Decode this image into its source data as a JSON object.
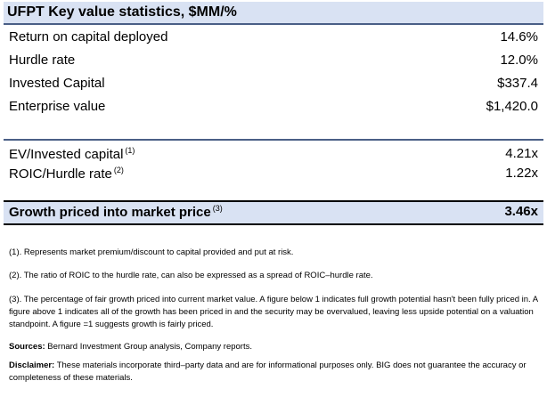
{
  "title": "UFPT Key value statistics, $MM/%",
  "metrics": [
    {
      "label": "Return on capital deployed",
      "value": "14.6%"
    },
    {
      "label": "Hurdle rate",
      "value": "12.0%"
    },
    {
      "label": "Invested Capital",
      "value": "$337.4"
    },
    {
      "label": "Enterprise value",
      "value": "$1,420.0"
    }
  ],
  "ratios": [
    {
      "label": "EV/Invested capital",
      "note_ref": "(1)",
      "value": "4.21x"
    },
    {
      "label": "ROIC/Hurdle rate",
      "note_ref": "(2)",
      "value": "1.22x"
    }
  ],
  "summary": {
    "label": "Growth priced into market price",
    "note_ref": "(3)",
    "value": "3.46x"
  },
  "notes": [
    "(1). Represents market premium/discount to capital provided and put at risk.",
    "(2). The ratio of ROIC to the hurdle rate, can also be expressed as a spread of ROIC–hurdle rate.",
    "(3). The percentage of fair growth priced into current market value. A figure below 1 indicates full growth potential  hasn't been fully priced in. A figure above 1 indicates all of the growth has been priced in and the security may be overvalued, leaving less upside potential on a valuation standpoint. A figure =1 suggests growth is fairly priced."
  ],
  "sources": {
    "label": "Sources:",
    "text": " Bernard Investment Group analysis, Company reports."
  },
  "disclaimer": {
    "label": "Disclaimer:",
    "text": " These materials incorporate third–party data and are for informational purposes only. BIG does not guarantee the accuracy or completeness of these materials."
  }
}
